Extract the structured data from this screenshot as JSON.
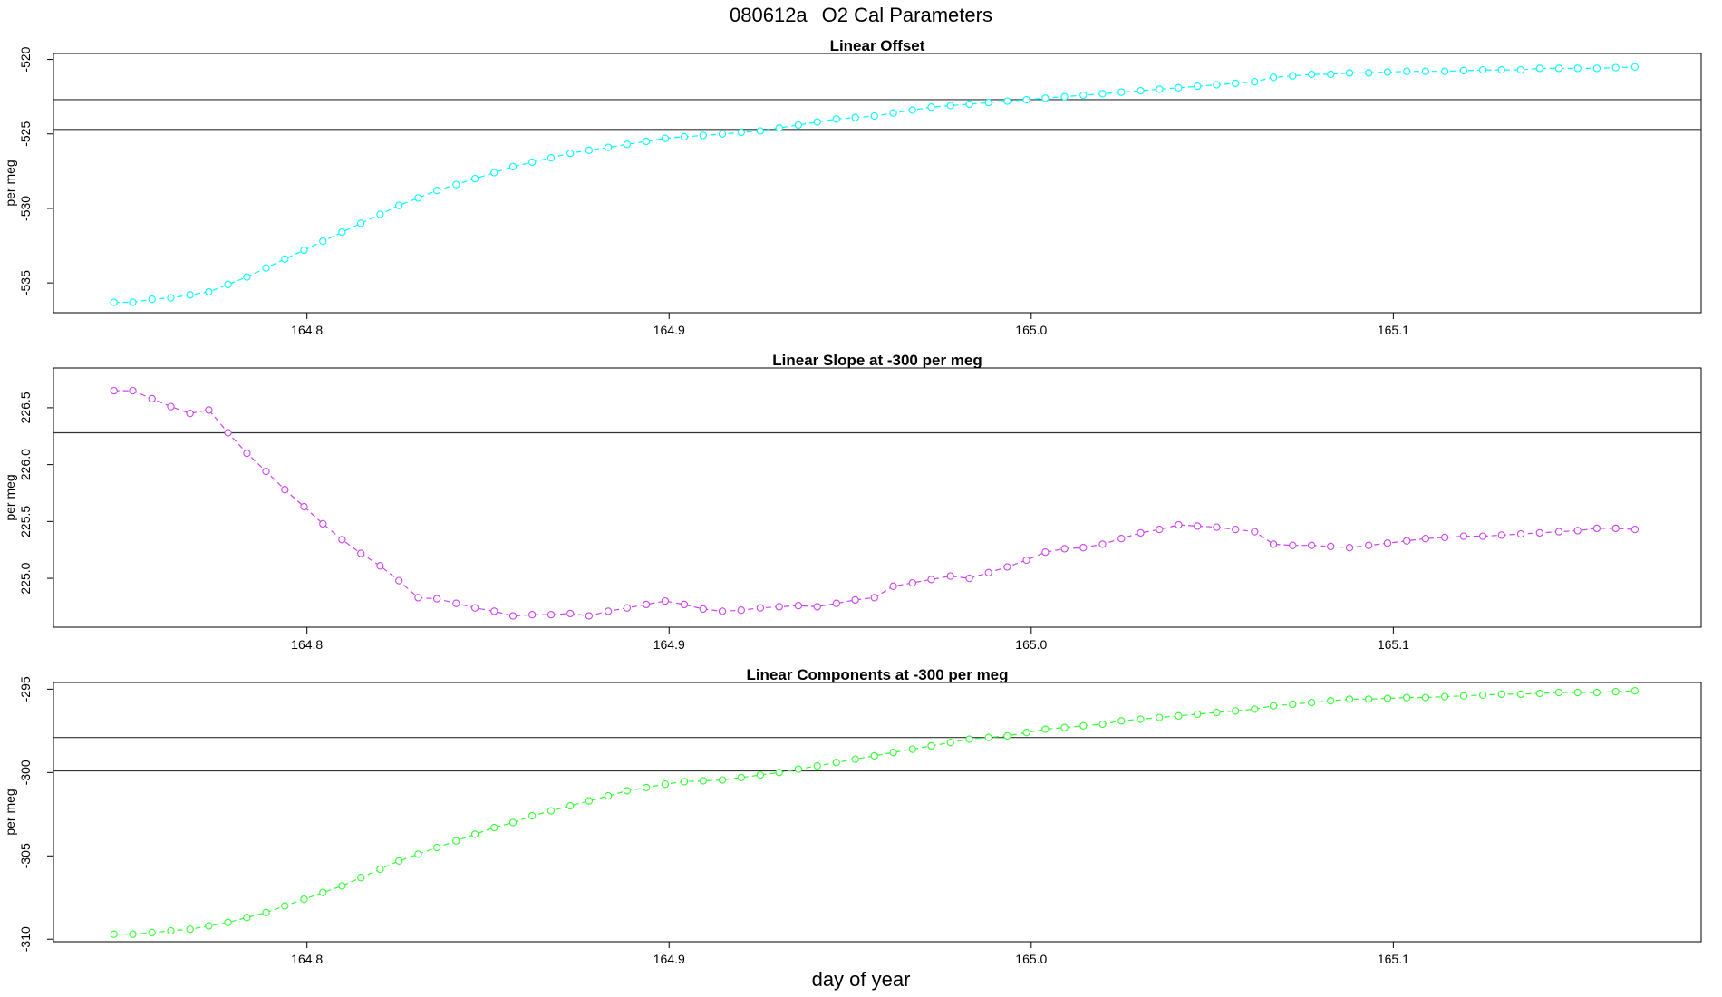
{
  "title": {
    "code": "080612a",
    "text": "O2 Cal Parameters"
  },
  "xlabel": "day of year",
  "colors": {
    "offset": "#00FFFF",
    "slope": "#CC44EE",
    "components": "#33FF33",
    "frame": "#000000",
    "reference": "#333333"
  },
  "chart_data": [
    {
      "type": "line",
      "title": "Linear Offset",
      "ylabel": "per meg",
      "xlim": [
        164.73,
        165.185
      ],
      "ylim": [
        -537.0,
        -519.6
      ],
      "xticks": [
        164.8,
        164.9,
        165.0,
        165.1
      ],
      "xtick_labels": [
        "164.8",
        "164.9",
        "165.0",
        "165.1"
      ],
      "yticks": [
        -520,
        -525,
        -530,
        -535
      ],
      "ytick_labels": [
        "-520",
        "-525",
        "-530",
        "-535"
      ],
      "reference_lines": [
        -522.7,
        -524.7
      ],
      "series": [
        {
          "color": "#00FFFF",
          "x": [
            164.7467,
            164.7519,
            164.7572,
            164.7624,
            164.7677,
            164.7729,
            164.7782,
            164.7834,
            164.7887,
            164.7939,
            164.7992,
            164.8044,
            164.8097,
            164.8149,
            164.8202,
            164.8254,
            164.8307,
            164.8359,
            164.8412,
            164.8464,
            164.8517,
            164.8569,
            164.8622,
            164.8674,
            164.8727,
            164.8779,
            164.8832,
            164.8884,
            164.8937,
            164.8989,
            164.9042,
            164.9094,
            164.9147,
            164.9199,
            164.9252,
            164.9304,
            164.9357,
            164.9409,
            164.9462,
            164.9514,
            164.9567,
            164.9619,
            164.9672,
            164.9724,
            164.9777,
            164.9829,
            164.9882,
            164.9934,
            164.9987,
            165.0039,
            165.0092,
            165.0144,
            165.0197,
            165.0249,
            165.0302,
            165.0354,
            165.0407,
            165.0459,
            165.0512,
            165.0564,
            165.0617,
            165.0669,
            165.0722,
            165.0774,
            165.0827,
            165.0879,
            165.0932,
            165.0984,
            165.1037,
            165.1089,
            165.1142,
            165.1194,
            165.1247,
            165.1299,
            165.1352,
            165.1404,
            165.1457,
            165.1509,
            165.1562,
            165.1614,
            165.1667
          ],
          "y": [
            -536.3,
            -536.3,
            -536.1,
            -536.0,
            -535.8,
            -535.6,
            -535.1,
            -534.6,
            -534.0,
            -533.4,
            -532.8,
            -532.2,
            -531.6,
            -531.0,
            -530.4,
            -529.8,
            -529.3,
            -528.8,
            -528.4,
            -528.0,
            -527.6,
            -527.2,
            -526.9,
            -526.6,
            -526.3,
            -526.1,
            -525.9,
            -525.7,
            -525.5,
            -525.3,
            -525.2,
            -525.1,
            -525.0,
            -524.9,
            -524.8,
            -524.6,
            -524.4,
            -524.2,
            -524.0,
            -523.9,
            -523.8,
            -523.6,
            -523.4,
            -523.2,
            -523.1,
            -523.0,
            -522.9,
            -522.8,
            -522.7,
            -522.6,
            -522.5,
            -522.4,
            -522.3,
            -522.2,
            -522.1,
            -522.0,
            -521.9,
            -521.8,
            -521.7,
            -521.6,
            -521.5,
            -521.2,
            -521.1,
            -521.0,
            -521.0,
            -520.9,
            -520.9,
            -520.85,
            -520.8,
            -520.8,
            -520.8,
            -520.75,
            -520.7,
            -520.7,
            -520.7,
            -520.6,
            -520.6,
            -520.6,
            -520.6,
            -520.55,
            -520.5
          ]
        }
      ]
    },
    {
      "type": "line",
      "title": "Linear Slope at -300 per meg",
      "ylabel": "per meg",
      "xlim": [
        164.73,
        165.185
      ],
      "ylim": [
        224.57,
        226.85
      ],
      "xticks": [
        164.8,
        164.9,
        165.0,
        165.1
      ],
      "xtick_labels": [
        "164.8",
        "164.9",
        "165.0",
        "165.1"
      ],
      "yticks": [
        226.5,
        226.0,
        225.5,
        225.0
      ],
      "ytick_labels": [
        "226.5",
        "226.0",
        "225.5",
        "225.0"
      ],
      "reference_lines": [
        226.28
      ],
      "series": [
        {
          "color": "#CC44EE",
          "x": [
            164.7467,
            164.7519,
            164.7572,
            164.7624,
            164.7677,
            164.7729,
            164.7782,
            164.7834,
            164.7887,
            164.7939,
            164.7992,
            164.8044,
            164.8097,
            164.8149,
            164.8202,
            164.8254,
            164.8307,
            164.8359,
            164.8412,
            164.8464,
            164.8517,
            164.8569,
            164.8622,
            164.8674,
            164.8727,
            164.8779,
            164.8832,
            164.8884,
            164.8937,
            164.8989,
            164.9042,
            164.9094,
            164.9147,
            164.9199,
            164.9252,
            164.9304,
            164.9357,
            164.9409,
            164.9462,
            164.9514,
            164.9567,
            164.9619,
            164.9672,
            164.9724,
            164.9777,
            164.9829,
            164.9882,
            164.9934,
            164.9987,
            165.0039,
            165.0092,
            165.0144,
            165.0197,
            165.0249,
            165.0302,
            165.0354,
            165.0407,
            165.0459,
            165.0512,
            165.0564,
            165.0617,
            165.0669,
            165.0722,
            165.0774,
            165.0827,
            165.0879,
            165.0932,
            165.0984,
            165.1037,
            165.1089,
            165.1142,
            165.1194,
            165.1247,
            165.1299,
            165.1352,
            165.1404,
            165.1457,
            165.1509,
            165.1562,
            165.1614,
            165.1667
          ],
          "y": [
            226.65,
            226.65,
            226.58,
            226.51,
            226.45,
            226.48,
            226.28,
            226.1,
            225.94,
            225.78,
            225.63,
            225.48,
            225.34,
            225.22,
            225.11,
            224.98,
            224.83,
            224.82,
            224.78,
            224.74,
            224.71,
            224.67,
            224.68,
            224.68,
            224.69,
            224.67,
            224.71,
            224.74,
            224.77,
            224.8,
            224.77,
            224.73,
            224.71,
            224.72,
            224.74,
            224.75,
            224.76,
            224.75,
            224.78,
            224.81,
            224.83,
            224.93,
            224.96,
            224.99,
            225.02,
            225.0,
            225.05,
            225.1,
            225.16,
            225.23,
            225.26,
            225.27,
            225.3,
            225.35,
            225.4,
            225.43,
            225.47,
            225.46,
            225.45,
            225.43,
            225.41,
            225.3,
            225.29,
            225.29,
            225.28,
            225.27,
            225.29,
            225.31,
            225.33,
            225.35,
            225.36,
            225.37,
            225.37,
            225.38,
            225.39,
            225.4,
            225.41,
            225.42,
            225.44,
            225.44,
            225.43
          ]
        }
      ]
    },
    {
      "type": "line",
      "title": "Linear Components at -300 per meg",
      "ylabel": "per meg",
      "xlim": [
        164.73,
        165.185
      ],
      "ylim": [
        -310.15,
        -294.6
      ],
      "xticks": [
        164.8,
        164.9,
        165.0,
        165.1
      ],
      "xtick_labels": [
        "164.8",
        "164.9",
        "165.0",
        "165.1"
      ],
      "yticks": [
        -295,
        -300,
        -305,
        -310
      ],
      "ytick_labels": [
        "-295",
        "-300",
        "-305",
        "-310"
      ],
      "reference_lines": [
        -297.9,
        -299.9
      ],
      "series": [
        {
          "color": "#33FF33",
          "x": [
            164.7467,
            164.7519,
            164.7572,
            164.7624,
            164.7677,
            164.7729,
            164.7782,
            164.7834,
            164.7887,
            164.7939,
            164.7992,
            164.8044,
            164.8097,
            164.8149,
            164.8202,
            164.8254,
            164.8307,
            164.8359,
            164.8412,
            164.8464,
            164.8517,
            164.8569,
            164.8622,
            164.8674,
            164.8727,
            164.8779,
            164.8832,
            164.8884,
            164.8937,
            164.8989,
            164.9042,
            164.9094,
            164.9147,
            164.9199,
            164.9252,
            164.9304,
            164.9357,
            164.9409,
            164.9462,
            164.9514,
            164.9567,
            164.9619,
            164.9672,
            164.9724,
            164.9777,
            164.9829,
            164.9882,
            164.9934,
            164.9987,
            165.0039,
            165.0092,
            165.0144,
            165.0197,
            165.0249,
            165.0302,
            165.0354,
            165.0407,
            165.0459,
            165.0512,
            165.0564,
            165.0617,
            165.0669,
            165.0722,
            165.0774,
            165.0827,
            165.0879,
            165.0932,
            165.0984,
            165.1037,
            165.1089,
            165.1142,
            165.1194,
            165.1247,
            165.1299,
            165.1352,
            165.1404,
            165.1457,
            165.1509,
            165.1562,
            165.1614,
            165.1667
          ],
          "y": [
            -309.7,
            -309.7,
            -309.6,
            -309.5,
            -309.4,
            -309.2,
            -309.0,
            -308.7,
            -308.4,
            -308.0,
            -307.6,
            -307.2,
            -306.8,
            -306.3,
            -305.8,
            -305.3,
            -304.9,
            -304.5,
            -304.1,
            -303.7,
            -303.3,
            -303.0,
            -302.6,
            -302.3,
            -302.0,
            -301.7,
            -301.4,
            -301.1,
            -300.9,
            -300.7,
            -300.55,
            -300.5,
            -300.45,
            -300.3,
            -300.15,
            -300.0,
            -299.8,
            -299.6,
            -299.4,
            -299.2,
            -299.0,
            -298.8,
            -298.6,
            -298.4,
            -298.2,
            -298.0,
            -297.9,
            -297.8,
            -297.6,
            -297.4,
            -297.3,
            -297.2,
            -297.1,
            -296.9,
            -296.8,
            -296.7,
            -296.6,
            -296.5,
            -296.4,
            -296.3,
            -296.2,
            -296.0,
            -295.9,
            -295.8,
            -295.7,
            -295.6,
            -295.6,
            -295.55,
            -295.5,
            -295.5,
            -295.45,
            -295.4,
            -295.35,
            -295.3,
            -295.3,
            -295.25,
            -295.2,
            -295.2,
            -295.2,
            -295.15,
            -295.1
          ]
        }
      ]
    }
  ]
}
